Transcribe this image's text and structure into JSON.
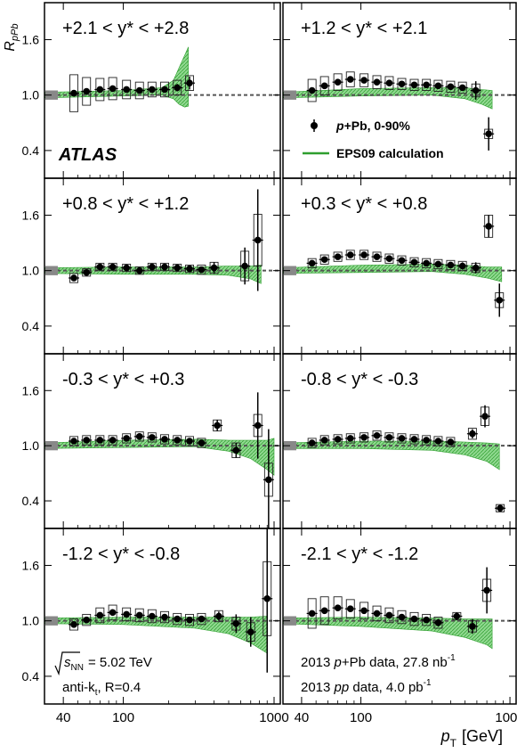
{
  "figure": {
    "y_axis_label": "R",
    "y_axis_label_sub": "pPb",
    "x_axis_label": "p",
    "x_axis_label_sub": "T",
    "x_axis_unit": "[GeV]",
    "y_ticks": [
      "0.4",
      "1.0",
      "1.6"
    ],
    "x_ticks": [
      "40",
      "100",
      "1000"
    ],
    "atlas_label": "ATLAS",
    "legend": {
      "data_label_italic": "p",
      "data_label_rest": "+Pb, 0-90%",
      "band_label": "EPS09 calculation"
    },
    "energy_label_prefix": "s",
    "energy_label_sub": "NN",
    "energy_label_value": "= 5.02 TeV",
    "algo_label_prefix": "anti-k",
    "algo_label_sub": "t",
    "algo_label_rest": ", R=0.4",
    "lumi_pPb_prefix": "2013 ",
    "lumi_pPb_italic": "p",
    "lumi_pPb_mid": "+Pb data, 27.8 nb",
    "lumi_pPb_sup": "-1",
    "lumi_pp_prefix": "2013 ",
    "lumi_pp_italic": "pp",
    "lumi_pp_mid": " data, 4.0 pb",
    "lumi_pp_sup": "-1"
  },
  "colors": {
    "band_fill": "#8fd88f",
    "band_edge": "#2e9e2e",
    "marker": "#000000",
    "reference_line": "#555555",
    "frame": "#000000"
  },
  "chart_data": {
    "type": "scatter",
    "xlabel": "pT [GeV]",
    "ylabel": "RpPb",
    "x_scale": "log",
    "xlim": [
      30,
      1100
    ],
    "ylim": [
      0.1,
      2.0
    ],
    "reference_value": 1.0,
    "panels": [
      {
        "label": "+2.1 < y* < +2.8",
        "points": [
          {
            "x": 47,
            "y": 1.02,
            "stat": 0.01,
            "box": 0.2
          },
          {
            "x": 57,
            "y": 1.04,
            "stat": 0.01,
            "box": 0.15
          },
          {
            "x": 70,
            "y": 1.06,
            "stat": 0.01,
            "box": 0.12
          },
          {
            "x": 85,
            "y": 1.07,
            "stat": 0.01,
            "box": 0.12
          },
          {
            "x": 105,
            "y": 1.06,
            "stat": 0.01,
            "box": 0.1
          },
          {
            "x": 128,
            "y": 1.05,
            "stat": 0.01,
            "box": 0.09
          },
          {
            "x": 155,
            "y": 1.06,
            "stat": 0.01,
            "box": 0.08
          },
          {
            "x": 188,
            "y": 1.06,
            "stat": 0.02,
            "box": 0.08
          },
          {
            "x": 228,
            "y": 1.08,
            "stat": 0.04,
            "box": 0.08
          },
          {
            "x": 275,
            "y": 1.13,
            "stat": 0.07,
            "box": 0.08
          }
        ],
        "band": {
          "x": [
            30,
            100,
            180,
            215,
            235,
            255,
            270
          ],
          "y": [
            1.0,
            1.02,
            1.04,
            1.06,
            1.1,
            1.15,
            1.2
          ],
          "half_width": [
            0.03,
            0.03,
            0.04,
            0.1,
            0.2,
            0.28,
            0.32
          ]
        }
      },
      {
        "label": "+1.2 < y* < +2.1",
        "points": [
          {
            "x": 47,
            "y": 1.05,
            "stat": 0.01,
            "box": 0.12
          },
          {
            "x": 57,
            "y": 1.1,
            "stat": 0.01,
            "box": 0.1
          },
          {
            "x": 70,
            "y": 1.14,
            "stat": 0.01,
            "box": 0.09
          },
          {
            "x": 85,
            "y": 1.17,
            "stat": 0.01,
            "box": 0.08
          },
          {
            "x": 105,
            "y": 1.16,
            "stat": 0.01,
            "box": 0.07
          },
          {
            "x": 128,
            "y": 1.14,
            "stat": 0.01,
            "box": 0.07
          },
          {
            "x": 155,
            "y": 1.13,
            "stat": 0.01,
            "box": 0.07
          },
          {
            "x": 188,
            "y": 1.12,
            "stat": 0.01,
            "box": 0.06
          },
          {
            "x": 228,
            "y": 1.11,
            "stat": 0.01,
            "box": 0.06
          },
          {
            "x": 275,
            "y": 1.11,
            "stat": 0.02,
            "box": 0.06
          },
          {
            "x": 330,
            "y": 1.1,
            "stat": 0.02,
            "box": 0.06
          },
          {
            "x": 400,
            "y": 1.09,
            "stat": 0.02,
            "box": 0.06
          },
          {
            "x": 480,
            "y": 1.08,
            "stat": 0.03,
            "box": 0.06
          },
          {
            "x": 590,
            "y": 1.05,
            "stat": 0.1,
            "box": 0.07
          },
          {
            "x": 720,
            "y": 0.58,
            "stat": 0.18,
            "box": 0.05
          }
        ],
        "band": {
          "x": [
            30,
            100,
            300,
            500,
            650,
            760
          ],
          "y": [
            1.0,
            1.03,
            1.04,
            1.02,
            0.98,
            0.95
          ],
          "half_width": [
            0.03,
            0.04,
            0.04,
            0.06,
            0.08,
            0.1
          ]
        }
      },
      {
        "label": "+0.8 < y* < +1.2",
        "points": [
          {
            "x": 47,
            "y": 0.92,
            "stat": 0.02,
            "box": 0.05
          },
          {
            "x": 57,
            "y": 0.98,
            "stat": 0.02,
            "box": 0.04
          },
          {
            "x": 70,
            "y": 1.04,
            "stat": 0.01,
            "box": 0.04
          },
          {
            "x": 85,
            "y": 1.04,
            "stat": 0.01,
            "box": 0.04
          },
          {
            "x": 105,
            "y": 1.03,
            "stat": 0.01,
            "box": 0.04
          },
          {
            "x": 128,
            "y": 1.0,
            "stat": 0.01,
            "box": 0.04
          },
          {
            "x": 155,
            "y": 1.04,
            "stat": 0.01,
            "box": 0.04
          },
          {
            "x": 188,
            "y": 1.04,
            "stat": 0.01,
            "box": 0.04
          },
          {
            "x": 228,
            "y": 1.03,
            "stat": 0.02,
            "box": 0.04
          },
          {
            "x": 275,
            "y": 1.02,
            "stat": 0.02,
            "box": 0.04
          },
          {
            "x": 330,
            "y": 1.01,
            "stat": 0.03,
            "box": 0.05
          },
          {
            "x": 400,
            "y": 1.03,
            "stat": 0.06,
            "box": 0.06
          },
          {
            "x": 640,
            "y": 1.05,
            "stat": 0.2,
            "box": 0.16
          },
          {
            "x": 780,
            "y": 1.33,
            "stat": 0.55,
            "box": 0.28
          }
        ],
        "band": {
          "x": [
            30,
            100,
            300,
            500,
            700,
            820
          ],
          "y": [
            1.0,
            1.0,
            1.0,
            1.0,
            0.98,
            0.96
          ],
          "half_width": [
            0.03,
            0.04,
            0.04,
            0.05,
            0.07,
            0.1
          ]
        }
      },
      {
        "label": "+0.3 < y* < +0.8",
        "points": [
          {
            "x": 47,
            "y": 1.08,
            "stat": 0.01,
            "box": 0.05
          },
          {
            "x": 57,
            "y": 1.12,
            "stat": 0.01,
            "box": 0.05
          },
          {
            "x": 70,
            "y": 1.15,
            "stat": 0.01,
            "box": 0.05
          },
          {
            "x": 85,
            "y": 1.17,
            "stat": 0.01,
            "box": 0.05
          },
          {
            "x": 105,
            "y": 1.17,
            "stat": 0.01,
            "box": 0.05
          },
          {
            "x": 128,
            "y": 1.15,
            "stat": 0.01,
            "box": 0.05
          },
          {
            "x": 155,
            "y": 1.13,
            "stat": 0.01,
            "box": 0.05
          },
          {
            "x": 188,
            "y": 1.11,
            "stat": 0.01,
            "box": 0.05
          },
          {
            "x": 228,
            "y": 1.09,
            "stat": 0.01,
            "box": 0.05
          },
          {
            "x": 275,
            "y": 1.08,
            "stat": 0.02,
            "box": 0.05
          },
          {
            "x": 330,
            "y": 1.07,
            "stat": 0.02,
            "box": 0.05
          },
          {
            "x": 400,
            "y": 1.06,
            "stat": 0.02,
            "box": 0.05
          },
          {
            "x": 480,
            "y": 1.05,
            "stat": 0.04,
            "box": 0.05
          },
          {
            "x": 590,
            "y": 1.03,
            "stat": 0.06,
            "box": 0.05
          },
          {
            "x": 720,
            "y": 1.48,
            "stat": 0.12,
            "box": 0.12
          },
          {
            "x": 850,
            "y": 0.68,
            "stat": 0.18,
            "box": 0.08
          }
        ],
        "band": {
          "x": [
            30,
            100,
            300,
            500,
            700,
            880
          ],
          "y": [
            1.0,
            1.02,
            1.03,
            1.01,
            0.98,
            0.96
          ],
          "half_width": [
            0.03,
            0.04,
            0.04,
            0.05,
            0.06,
            0.08
          ]
        }
      },
      {
        "label": "-0.3 < y* < +0.3",
        "points": [
          {
            "x": 47,
            "y": 1.05,
            "stat": 0.01,
            "box": 0.05
          },
          {
            "x": 57,
            "y": 1.06,
            "stat": 0.01,
            "box": 0.05
          },
          {
            "x": 70,
            "y": 1.06,
            "stat": 0.01,
            "box": 0.05
          },
          {
            "x": 85,
            "y": 1.06,
            "stat": 0.01,
            "box": 0.05
          },
          {
            "x": 105,
            "y": 1.08,
            "stat": 0.01,
            "box": 0.05
          },
          {
            "x": 128,
            "y": 1.1,
            "stat": 0.01,
            "box": 0.05
          },
          {
            "x": 155,
            "y": 1.09,
            "stat": 0.01,
            "box": 0.05
          },
          {
            "x": 188,
            "y": 1.07,
            "stat": 0.01,
            "box": 0.05
          },
          {
            "x": 228,
            "y": 1.06,
            "stat": 0.01,
            "box": 0.05
          },
          {
            "x": 275,
            "y": 1.05,
            "stat": 0.02,
            "box": 0.05
          },
          {
            "x": 330,
            "y": 1.03,
            "stat": 0.02,
            "box": 0.05
          },
          {
            "x": 420,
            "y": 1.22,
            "stat": 0.06,
            "box": 0.06
          },
          {
            "x": 560,
            "y": 0.95,
            "stat": 0.08,
            "box": 0.08
          },
          {
            "x": 780,
            "y": 1.22,
            "stat": 0.36,
            "box": 0.12
          },
          {
            "x": 920,
            "y": 0.63,
            "stat": 0.55,
            "box": 0.18
          }
        ],
        "band": {
          "x": [
            30,
            100,
            300,
            500,
            700,
            900,
            1000
          ],
          "y": [
            1.0,
            1.02,
            1.03,
            1.0,
            0.96,
            0.9,
            0.88
          ],
          "half_width": [
            0.03,
            0.04,
            0.04,
            0.06,
            0.1,
            0.16,
            0.2
          ]
        }
      },
      {
        "label": "-0.8 < y* < -0.3",
        "points": [
          {
            "x": 47,
            "y": 1.03,
            "stat": 0.01,
            "box": 0.05
          },
          {
            "x": 57,
            "y": 1.06,
            "stat": 0.01,
            "box": 0.05
          },
          {
            "x": 70,
            "y": 1.07,
            "stat": 0.01,
            "box": 0.05
          },
          {
            "x": 85,
            "y": 1.08,
            "stat": 0.01,
            "box": 0.05
          },
          {
            "x": 105,
            "y": 1.09,
            "stat": 0.01,
            "box": 0.05
          },
          {
            "x": 128,
            "y": 1.11,
            "stat": 0.01,
            "box": 0.05
          },
          {
            "x": 155,
            "y": 1.09,
            "stat": 0.01,
            "box": 0.05
          },
          {
            "x": 188,
            "y": 1.08,
            "stat": 0.01,
            "box": 0.05
          },
          {
            "x": 228,
            "y": 1.07,
            "stat": 0.01,
            "box": 0.05
          },
          {
            "x": 275,
            "y": 1.06,
            "stat": 0.02,
            "box": 0.05
          },
          {
            "x": 330,
            "y": 1.05,
            "stat": 0.02,
            "box": 0.05
          },
          {
            "x": 400,
            "y": 1.04,
            "stat": 0.02,
            "box": 0.05
          },
          {
            "x": 560,
            "y": 1.13,
            "stat": 0.05,
            "box": 0.06
          },
          {
            "x": 680,
            "y": 1.32,
            "stat": 0.12,
            "box": 0.1
          },
          {
            "x": 860,
            "y": 0.32,
            "stat": 0.02,
            "box": 0.04
          }
        ],
        "band": {
          "x": [
            30,
            100,
            300,
            500,
            700,
            850
          ],
          "y": [
            1.0,
            1.01,
            1.0,
            0.97,
            0.93,
            0.88
          ],
          "half_width": [
            0.03,
            0.04,
            0.05,
            0.07,
            0.1,
            0.14
          ]
        }
      },
      {
        "label": "-1.2 < y* < -0.8",
        "points": [
          {
            "x": 47,
            "y": 0.96,
            "stat": 0.01,
            "box": 0.06
          },
          {
            "x": 57,
            "y": 1.01,
            "stat": 0.01,
            "box": 0.06
          },
          {
            "x": 70,
            "y": 1.06,
            "stat": 0.01,
            "box": 0.08
          },
          {
            "x": 85,
            "y": 1.09,
            "stat": 0.01,
            "box": 0.08
          },
          {
            "x": 105,
            "y": 1.07,
            "stat": 0.01,
            "box": 0.07
          },
          {
            "x": 128,
            "y": 1.06,
            "stat": 0.01,
            "box": 0.07
          },
          {
            "x": 155,
            "y": 1.05,
            "stat": 0.01,
            "box": 0.07
          },
          {
            "x": 188,
            "y": 1.04,
            "stat": 0.01,
            "box": 0.06
          },
          {
            "x": 228,
            "y": 1.02,
            "stat": 0.01,
            "box": 0.06
          },
          {
            "x": 275,
            "y": 1.01,
            "stat": 0.02,
            "box": 0.06
          },
          {
            "x": 330,
            "y": 1.02,
            "stat": 0.02,
            "box": 0.06
          },
          {
            "x": 430,
            "y": 1.05,
            "stat": 0.05,
            "box": 0.06
          },
          {
            "x": 560,
            "y": 0.97,
            "stat": 0.1,
            "box": 0.07
          },
          {
            "x": 700,
            "y": 0.88,
            "stat": 0.16,
            "box": 0.1
          },
          {
            "x": 900,
            "y": 1.24,
            "stat": 0.8,
            "box": 0.4
          }
        ],
        "band": {
          "x": [
            30,
            100,
            300,
            500,
            700,
            900
          ],
          "y": [
            1.0,
            1.0,
            0.98,
            0.95,
            0.9,
            0.85
          ],
          "half_width": [
            0.03,
            0.04,
            0.06,
            0.09,
            0.14,
            0.2
          ]
        }
      },
      {
        "label": "-2.1 < y* < -1.2",
        "points": [
          {
            "x": 47,
            "y": 1.08,
            "stat": 0.01,
            "box": 0.16
          },
          {
            "x": 57,
            "y": 1.11,
            "stat": 0.01,
            "box": 0.15
          },
          {
            "x": 70,
            "y": 1.14,
            "stat": 0.01,
            "box": 0.12
          },
          {
            "x": 85,
            "y": 1.13,
            "stat": 0.01,
            "box": 0.1
          },
          {
            "x": 105,
            "y": 1.11,
            "stat": 0.01,
            "box": 0.09
          },
          {
            "x": 128,
            "y": 1.08,
            "stat": 0.01,
            "box": 0.08
          },
          {
            "x": 155,
            "y": 1.06,
            "stat": 0.01,
            "box": 0.08
          },
          {
            "x": 188,
            "y": 1.04,
            "stat": 0.02,
            "box": 0.07
          },
          {
            "x": 228,
            "y": 1.02,
            "stat": 0.02,
            "box": 0.07
          },
          {
            "x": 275,
            "y": 1.01,
            "stat": 0.03,
            "box": 0.06
          },
          {
            "x": 330,
            "y": 0.98,
            "stat": 0.04,
            "box": 0.06
          },
          {
            "x": 440,
            "y": 1.05,
            "stat": 0.04,
            "box": 0.04
          },
          {
            "x": 560,
            "y": 0.94,
            "stat": 0.08,
            "box": 0.06
          },
          {
            "x": 700,
            "y": 1.33,
            "stat": 0.25,
            "box": 0.12
          }
        ],
        "band": {
          "x": [
            30,
            100,
            300,
            500,
            700,
            760
          ],
          "y": [
            1.0,
            0.99,
            0.96,
            0.92,
            0.88,
            0.86
          ],
          "half_width": [
            0.03,
            0.05,
            0.07,
            0.1,
            0.14,
            0.16
          ]
        }
      }
    ]
  }
}
